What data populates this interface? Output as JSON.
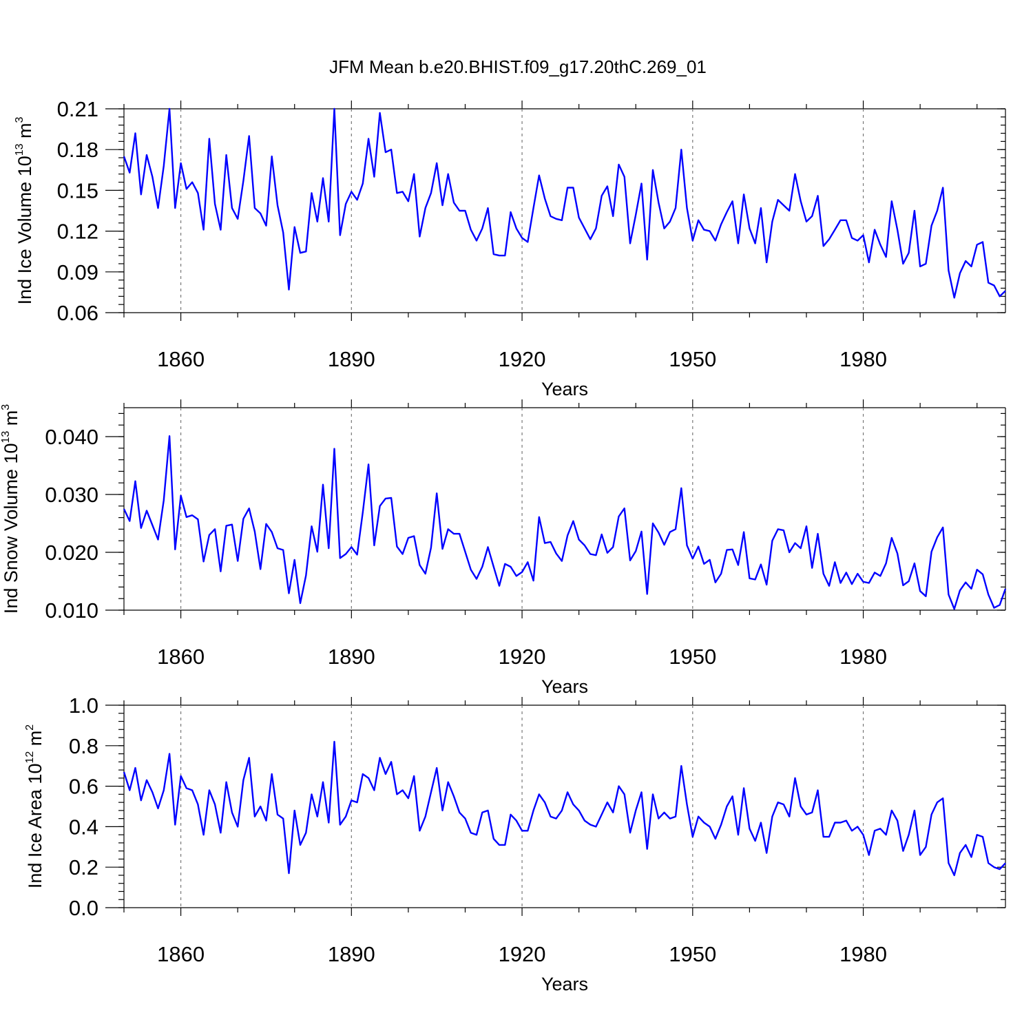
{
  "title": "JFM Mean b.e20.BHIST.f09_g17.20thC.269_01",
  "colors": {
    "line": "#0000ff",
    "grid": "#777777",
    "axis": "#000000"
  },
  "chart_data": [
    {
      "type": "line",
      "name": "ice-volume",
      "xlabel": "Years",
      "ylabel": {
        "prefix": "Ind Ice Volume 10",
        "exp1": "13",
        "unit": " m",
        "exp2": "3"
      },
      "xlim": [
        1850,
        2005
      ],
      "ylim": [
        0.06,
        0.21
      ],
      "xticks": [
        1860,
        1890,
        1920,
        1950,
        1980
      ],
      "yticks": [
        "0.06",
        "0.09",
        "0.12",
        "0.15",
        "0.18",
        "0.21"
      ],
      "x_start": 1850,
      "values": [
        0.175,
        0.163,
        0.192,
        0.147,
        0.176,
        0.16,
        0.137,
        0.168,
        0.21,
        0.137,
        0.17,
        0.151,
        0.156,
        0.148,
        0.121,
        0.188,
        0.14,
        0.121,
        0.176,
        0.137,
        0.129,
        0.157,
        0.19,
        0.137,
        0.133,
        0.124,
        0.175,
        0.139,
        0.119,
        0.077,
        0.123,
        0.104,
        0.105,
        0.148,
        0.127,
        0.159,
        0.127,
        0.21,
        0.117,
        0.14,
        0.149,
        0.143,
        0.155,
        0.188,
        0.16,
        0.207,
        0.178,
        0.18,
        0.148,
        0.149,
        0.142,
        0.162,
        0.116,
        0.137,
        0.148,
        0.17,
        0.139,
        0.162,
        0.141,
        0.135,
        0.135,
        0.121,
        0.113,
        0.122,
        0.137,
        0.103,
        0.102,
        0.102,
        0.134,
        0.122,
        0.115,
        0.112,
        0.137,
        0.161,
        0.144,
        0.131,
        0.129,
        0.128,
        0.152,
        0.152,
        0.13,
        0.122,
        0.114,
        0.122,
        0.146,
        0.153,
        0.131,
        0.169,
        0.16,
        0.111,
        0.132,
        0.155,
        0.099,
        0.165,
        0.141,
        0.122,
        0.127,
        0.137,
        0.18,
        0.137,
        0.113,
        0.128,
        0.121,
        0.12,
        0.113,
        0.125,
        0.134,
        0.142,
        0.111,
        0.147,
        0.122,
        0.111,
        0.137,
        0.097,
        0.127,
        0.143,
        0.139,
        0.135,
        0.162,
        0.142,
        0.127,
        0.131,
        0.146,
        0.109,
        0.114,
        0.121,
        0.128,
        0.128,
        0.115,
        0.113,
        0.117,
        0.097,
        0.121,
        0.11,
        0.101,
        0.142,
        0.121,
        0.096,
        0.104,
        0.135,
        0.094,
        0.096,
        0.124,
        0.135,
        0.152,
        0.091,
        0.071,
        0.089,
        0.098,
        0.094,
        0.11,
        0.112,
        0.082,
        0.08,
        0.072,
        0.076
      ]
    },
    {
      "type": "line",
      "name": "snow-volume",
      "xlabel": "Years",
      "ylabel": {
        "prefix": "Ind Snow Volume 10",
        "exp1": "13",
        "unit": " m",
        "exp2": "3"
      },
      "xlim": [
        1850,
        2005
      ],
      "ylim": [
        0.01,
        0.045
      ],
      "xticks": [
        1860,
        1890,
        1920,
        1950,
        1980
      ],
      "yticks": [
        "0.010",
        "0.020",
        "0.030",
        "0.040"
      ],
      "x_start": 1850,
      "values": [
        0.0275,
        0.0254,
        0.0323,
        0.0242,
        0.0272,
        0.0247,
        0.0222,
        0.029,
        0.0401,
        0.0205,
        0.0298,
        0.0261,
        0.0264,
        0.0257,
        0.0184,
        0.023,
        0.024,
        0.0167,
        0.0246,
        0.0248,
        0.0185,
        0.0258,
        0.0276,
        0.0236,
        0.0171,
        0.0249,
        0.0235,
        0.0207,
        0.0204,
        0.0129,
        0.0187,
        0.0112,
        0.016,
        0.0245,
        0.0201,
        0.0317,
        0.0207,
        0.0379,
        0.019,
        0.0197,
        0.0209,
        0.0196,
        0.0269,
        0.0352,
        0.0212,
        0.028,
        0.0293,
        0.0294,
        0.021,
        0.0197,
        0.0225,
        0.0228,
        0.0178,
        0.0163,
        0.0208,
        0.0302,
        0.0206,
        0.024,
        0.0232,
        0.0232,
        0.0201,
        0.017,
        0.0154,
        0.0175,
        0.0209,
        0.0175,
        0.0142,
        0.018,
        0.0175,
        0.0159,
        0.0166,
        0.0183,
        0.0151,
        0.0261,
        0.0216,
        0.0218,
        0.0198,
        0.0185,
        0.0229,
        0.0254,
        0.0222,
        0.0212,
        0.0197,
        0.0195,
        0.0231,
        0.0199,
        0.0209,
        0.0262,
        0.0276,
        0.0186,
        0.0202,
        0.0236,
        0.0128,
        0.025,
        0.0234,
        0.0213,
        0.0235,
        0.024,
        0.0311,
        0.0212,
        0.0189,
        0.021,
        0.018,
        0.0187,
        0.0148,
        0.0163,
        0.0204,
        0.0205,
        0.0178,
        0.0235,
        0.0155,
        0.0153,
        0.0179,
        0.0144,
        0.022,
        0.024,
        0.0238,
        0.02,
        0.0216,
        0.0207,
        0.0245,
        0.0173,
        0.0232,
        0.0163,
        0.0142,
        0.0183,
        0.0147,
        0.0165,
        0.0145,
        0.0163,
        0.0149,
        0.0147,
        0.0165,
        0.0159,
        0.0181,
        0.0225,
        0.0198,
        0.0143,
        0.015,
        0.0181,
        0.0133,
        0.0124,
        0.0201,
        0.0226,
        0.0243,
        0.0127,
        0.0102,
        0.0134,
        0.0148,
        0.0137,
        0.017,
        0.0162,
        0.0127,
        0.0104,
        0.0109,
        0.0137
      ]
    },
    {
      "type": "line",
      "name": "ice-area",
      "xlabel": "Years",
      "ylabel": {
        "prefix": "Ind Ice Area 10",
        "exp1": "12",
        "unit": " m",
        "exp2": "2"
      },
      "xlim": [
        1850,
        2005
      ],
      "ylim": [
        0.0,
        1.0
      ],
      "xticks": [
        1860,
        1890,
        1920,
        1950,
        1980
      ],
      "yticks": [
        "0.0",
        "0.2",
        "0.4",
        "0.6",
        "0.8",
        "1.0"
      ],
      "x_start": 1850,
      "values": [
        0.67,
        0.58,
        0.69,
        0.53,
        0.63,
        0.57,
        0.49,
        0.58,
        0.76,
        0.41,
        0.65,
        0.59,
        0.58,
        0.51,
        0.36,
        0.58,
        0.51,
        0.37,
        0.62,
        0.47,
        0.4,
        0.63,
        0.74,
        0.45,
        0.5,
        0.43,
        0.66,
        0.46,
        0.44,
        0.17,
        0.48,
        0.31,
        0.37,
        0.56,
        0.45,
        0.62,
        0.42,
        0.82,
        0.41,
        0.45,
        0.53,
        0.52,
        0.66,
        0.64,
        0.58,
        0.74,
        0.66,
        0.72,
        0.56,
        0.58,
        0.54,
        0.65,
        0.38,
        0.45,
        0.57,
        0.69,
        0.48,
        0.62,
        0.55,
        0.47,
        0.44,
        0.37,
        0.36,
        0.47,
        0.48,
        0.34,
        0.31,
        0.31,
        0.46,
        0.43,
        0.38,
        0.38,
        0.48,
        0.56,
        0.52,
        0.45,
        0.44,
        0.48,
        0.57,
        0.51,
        0.48,
        0.43,
        0.41,
        0.4,
        0.46,
        0.52,
        0.47,
        0.6,
        0.56,
        0.37,
        0.48,
        0.57,
        0.29,
        0.56,
        0.44,
        0.47,
        0.44,
        0.45,
        0.7,
        0.51,
        0.35,
        0.45,
        0.42,
        0.4,
        0.34,
        0.41,
        0.5,
        0.55,
        0.36,
        0.59,
        0.39,
        0.33,
        0.42,
        0.27,
        0.45,
        0.52,
        0.51,
        0.45,
        0.64,
        0.5,
        0.46,
        0.47,
        0.58,
        0.35,
        0.35,
        0.42,
        0.42,
        0.43,
        0.38,
        0.4,
        0.36,
        0.26,
        0.38,
        0.39,
        0.36,
        0.48,
        0.43,
        0.28,
        0.36,
        0.48,
        0.26,
        0.3,
        0.46,
        0.52,
        0.54,
        0.22,
        0.16,
        0.27,
        0.31,
        0.25,
        0.36,
        0.35,
        0.22,
        0.2,
        0.19,
        0.22
      ]
    }
  ]
}
